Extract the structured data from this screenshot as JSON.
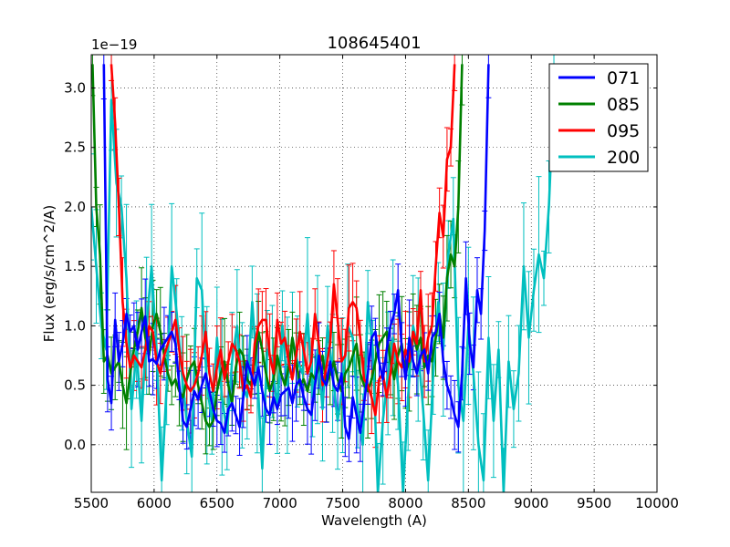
{
  "chart_data": {
    "type": "line",
    "title": "108645401",
    "xlabel": "Wavelength (A)",
    "ylabel": "Flux (erg/s/cm^2/A)",
    "y_offset_text": "1e−19",
    "xlim": [
      5500,
      10000
    ],
    "ylim": [
      -0.4,
      3.28
    ],
    "xticks": [
      5500,
      6000,
      6500,
      7000,
      7500,
      8000,
      8500,
      9000,
      9500,
      10000
    ],
    "xtick_labels": [
      "5500",
      "6000",
      "6500",
      "7000",
      "7500",
      "8000",
      "8500",
      "9000",
      "9500",
      "10000"
    ],
    "yticks": [
      0.0,
      0.5,
      1.0,
      1.5,
      2.0,
      2.5,
      3.0
    ],
    "ytick_labels": [
      "0.0",
      "0.5",
      "1.0",
      "1.5",
      "2.0",
      "2.5",
      "3.0"
    ],
    "grid": true,
    "legend_position": "top-right",
    "series": [
      {
        "name": "071",
        "color": "#0000ff",
        "start": 5600,
        "step": 30,
        "values": [
          3.2,
          0.55,
          0.35,
          1.05,
          0.7,
          0.85,
          1.1,
          0.95,
          1.0,
          0.8,
          0.95,
          1.08,
          0.7,
          0.72,
          0.68,
          0.8,
          0.85,
          0.9,
          0.95,
          0.85,
          0.5,
          0.2,
          0.15,
          0.3,
          0.45,
          0.38,
          0.5,
          0.6,
          0.45,
          0.3,
          0.2,
          0.18,
          0.1,
          0.3,
          0.35,
          0.25,
          0.15,
          0.4,
          0.7,
          0.6,
          0.5,
          0.65,
          0.45,
          0.3,
          0.25,
          0.4,
          0.3,
          0.42,
          0.45,
          0.48,
          0.35,
          0.5,
          0.55,
          0.4,
          0.3,
          0.25,
          0.5,
          0.75,
          0.55,
          0.5,
          0.7,
          0.5,
          0.45,
          0.6,
          0.15,
          0.05,
          0.4,
          0.25,
          0.1,
          0.35,
          0.6,
          0.9,
          0.95,
          0.7,
          0.55,
          0.8,
          1.0,
          1.1,
          1.3,
          0.8,
          0.55,
          0.9,
          0.7,
          0.6,
          0.75,
          0.8,
          0.6,
          0.9,
          0.95,
          1.1,
          0.7,
          0.5,
          0.4,
          0.25,
          0.15,
          0.6,
          1.4,
          0.85,
          0.65,
          1.3,
          1.1,
          1.8,
          3.2
        ]
      },
      {
        "name": "085",
        "color": "#008000",
        "start": 5510,
        "step": 30,
        "values": [
          3.2,
          2.0,
          1.6,
          0.7,
          0.75,
          0.6,
          0.65,
          0.7,
          0.5,
          0.35,
          0.6,
          0.8,
          0.95,
          1.15,
          0.9,
          0.75,
          1.0,
          1.1,
          0.95,
          0.75,
          0.6,
          0.5,
          0.55,
          0.45,
          0.4,
          0.55,
          0.65,
          0.7,
          0.5,
          0.35,
          0.2,
          0.15,
          0.2,
          0.45,
          0.6,
          0.7,
          0.5,
          0.35,
          0.65,
          0.8,
          0.75,
          0.55,
          0.5,
          0.7,
          0.95,
          0.8,
          0.6,
          0.45,
          0.55,
          0.75,
          0.6,
          0.5,
          0.65,
          0.9,
          0.7,
          0.5,
          0.55,
          0.45,
          0.6,
          0.55,
          0.65,
          0.75,
          0.5,
          0.6,
          0.7,
          0.55,
          0.45,
          0.6,
          0.65,
          0.75,
          0.85,
          0.6,
          0.5,
          0.45,
          0.55,
          0.7,
          0.85,
          0.9,
          0.95,
          0.7,
          0.55,
          0.75,
          0.85,
          0.6,
          0.7,
          0.95,
          0.8,
          0.9,
          0.65,
          0.75,
          0.7,
          0.9,
          1.1,
          0.9,
          1.4,
          1.6,
          1.5,
          2.0,
          3.2
        ]
      },
      {
        "name": "095",
        "color": "#ff0000",
        "start": 5660,
        "step": 30,
        "values": [
          3.2,
          2.7,
          2.0,
          1.2,
          0.85,
          0.65,
          0.75,
          0.7,
          0.65,
          0.8,
          1.0,
          0.95,
          0.7,
          0.6,
          0.75,
          0.85,
          0.95,
          1.05,
          0.8,
          0.6,
          0.5,
          0.45,
          0.5,
          0.6,
          0.75,
          0.95,
          0.6,
          0.45,
          0.65,
          0.8,
          0.55,
          0.7,
          0.85,
          0.8,
          0.7,
          0.45,
          0.5,
          0.4,
          0.85,
          1.0,
          1.05,
          1.05,
          0.75,
          0.6,
          1.05,
          0.85,
          0.9,
          0.7,
          0.55,
          0.75,
          0.95,
          0.8,
          0.6,
          0.7,
          1.1,
          0.85,
          0.5,
          0.65,
          0.85,
          1.35,
          1.05,
          0.7,
          0.75,
          1.15,
          1.2,
          1.15,
          0.9,
          0.55,
          0.5,
          0.4,
          0.25,
          0.55,
          0.6,
          0.4,
          0.6,
          0.85,
          0.7,
          0.65,
          0.8,
          0.7,
          0.95,
          0.85,
          1.3,
          0.7,
          0.9,
          1.0,
          1.5,
          1.95,
          1.75,
          2.4,
          2.5,
          3.2
        ]
      },
      {
        "name": "200",
        "color": "#00bfbf",
        "start": 5500,
        "step": 40,
        "values": [
          2.0,
          1.5,
          1.0,
          0.8,
          2.9,
          2.2,
          2.0,
          1.4,
          0.3,
          0.8,
          0.2,
          1.0,
          1.5,
          0.8,
          -0.3,
          0.5,
          1.5,
          1.1,
          0.6,
          0.2,
          -0.1,
          1.4,
          1.3,
          0.5,
          0.2,
          0.9,
          0.4,
          0.1,
          0.7,
          1.0,
          0.5,
          0.4,
          1.2,
          0.6,
          -0.2,
          0.8,
          0.7,
          0.3,
          1.0,
          0.5,
          0.9,
          0.7,
          0.6,
          1.1,
          0.4,
          0.8,
          0.3,
          1.0,
          0.6,
          0.2,
          0.5,
          1.0,
          0.9,
          0.3,
          0.0,
          1.2,
          0.8,
          -0.4,
          0.2,
          0.6,
          0.9,
          0.5,
          -0.4,
          0.4,
          1.0,
          0.8,
          0.3,
          -0.3,
          0.6,
          1.2,
          0.8,
          1.6,
          1.9,
          0.5,
          0.2,
          1.0,
          0.6,
          0.0,
          -0.3,
          0.9,
          0.2,
          0.8,
          -0.4,
          0.7,
          0.3,
          0.6,
          1.5,
          0.9,
          1.3,
          1.6,
          1.4,
          2.0,
          3.0
        ]
      }
    ]
  }
}
